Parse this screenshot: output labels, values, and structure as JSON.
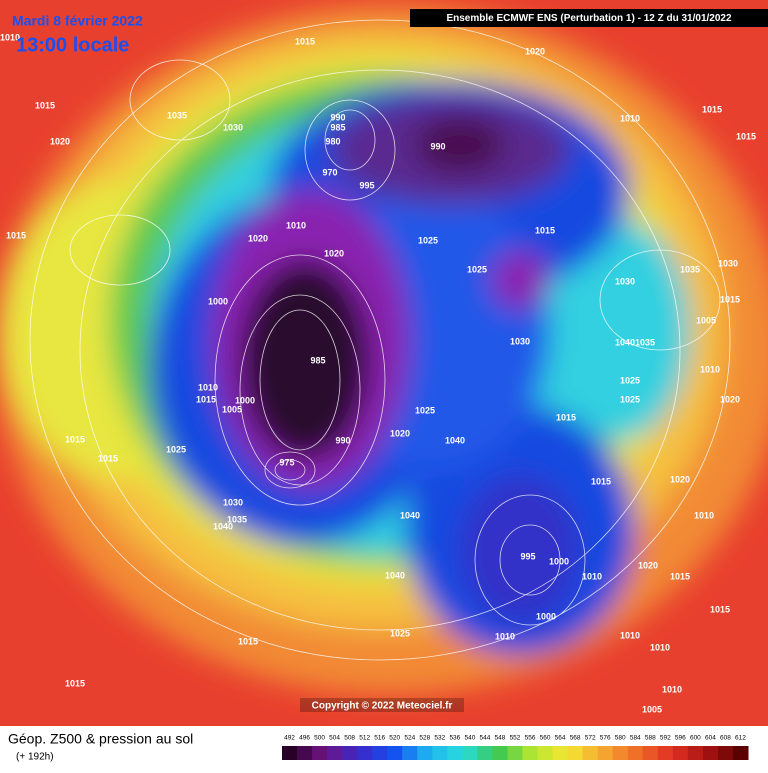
{
  "header": {
    "date": "Mardi 8 février 2022",
    "time": "13:00 locale",
    "model": "Ensemble ECMWF ENS  (Perturbation 1)  -  12 Z du 31/01/2022"
  },
  "map": {
    "isobar_labels": [
      1010,
      1015,
      1020,
      1015,
      1035,
      1030,
      1020,
      990,
      985,
      980,
      990,
      970,
      995,
      1010,
      1015,
      1015,
      1015,
      1020,
      1010,
      1020,
      1025,
      1015,
      1030,
      1035,
      1030,
      1025,
      1000,
      985,
      1030,
      1010,
      1015,
      1000,
      1005,
      990,
      1020,
      1040,
      1015,
      1025,
      1015,
      1015,
      1025,
      975,
      1030,
      1035,
      1040,
      1040,
      995,
      1000,
      1010,
      1015,
      1040,
      1025,
      1015,
      1015,
      1000,
      1010,
      1010,
      1010,
      1020,
      1015,
      1020,
      1010,
      1025,
      1025,
      1020,
      1040,
      1035,
      1005,
      1015,
      1010,
      1010,
      1005,
      1015
    ]
  },
  "footer": {
    "copyright": "Copyright © 2022 Meteociel.fr",
    "product": "Géop. Z500 & pression au sol",
    "lead": "(+ 192h)",
    "scale": [
      492,
      496,
      500,
      504,
      508,
      512,
      516,
      520,
      524,
      528,
      532,
      536,
      540,
      544,
      548,
      552,
      556,
      560,
      564,
      568,
      572,
      576,
      580,
      584,
      588,
      592,
      596,
      600,
      604,
      608,
      612
    ]
  }
}
